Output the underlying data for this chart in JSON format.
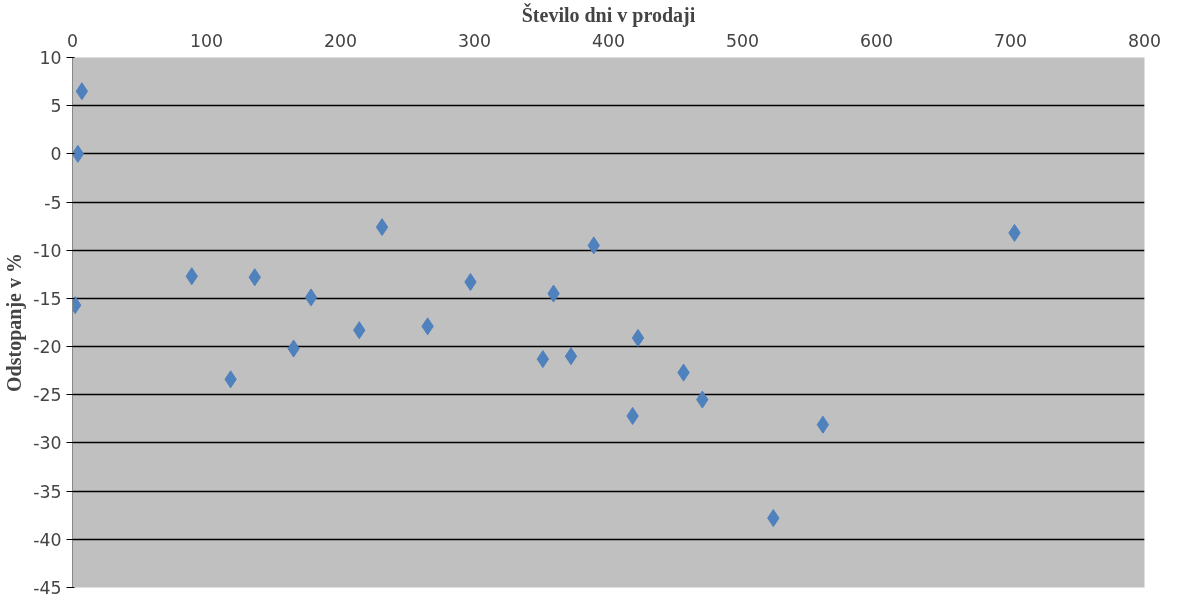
{
  "chart_data": {
    "type": "scatter",
    "xlabel": "Število dni v prodaji",
    "ylabel": "Odstopanje v %",
    "x": [
      7,
      4,
      2,
      89,
      118,
      136,
      165,
      178,
      214,
      231,
      265,
      297,
      351,
      359,
      372,
      389,
      422,
      418,
      456,
      470,
      523,
      560,
      703
    ],
    "series": [
      {
        "color": "#4f81bd",
        "values": [
          6.5,
          0,
          -15.7,
          -12.7,
          -23.4,
          -12.8,
          -20.2,
          -14.9,
          -18.3,
          -7.6,
          -17.9,
          -13.3,
          -21.3,
          -14.5,
          -21.0,
          -9.5,
          -19.1,
          -27.2,
          -22.7,
          -25.5,
          -37.8,
          -28.1,
          -8.2
        ]
      }
    ],
    "xlim": [
      0,
      800
    ],
    "xticks": [
      0,
      100,
      200,
      300,
      400,
      500,
      600,
      700,
      800
    ],
    "ylim": [
      -45,
      10
    ],
    "yticks": [
      -45,
      -40,
      -35,
      -30,
      -25,
      -20,
      -15,
      -10,
      -5,
      0,
      5,
      10
    ],
    "grid": "y",
    "marker": "diamond"
  }
}
